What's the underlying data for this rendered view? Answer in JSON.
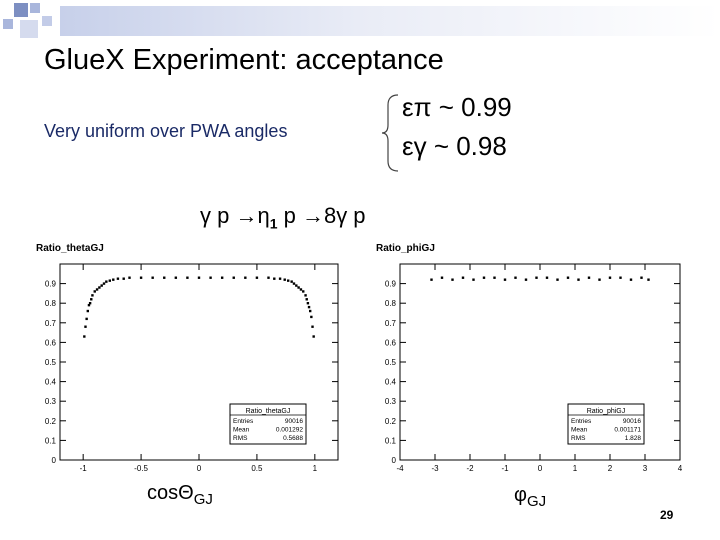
{
  "slide": {
    "title": "GlueX Experiment:  acceptance",
    "subtitle": "Very uniform over PWA angles",
    "eps_pi": "επ ~ 0.99",
    "eps_gamma": "εγ ~ 0.98",
    "reaction": {
      "pre": "γ p →η",
      "sub": "1",
      "post": " p →8γ p"
    },
    "page_number": "29",
    "deco_colors": [
      "#7d8fc2",
      "#a9b6dc",
      "#d5dbee"
    ]
  },
  "chart_data": [
    {
      "type": "scatter",
      "title": "Ratio_thetaGJ",
      "xlabel": "cosΘ",
      "xlabel_sub": "GJ",
      "ylabel": "",
      "xlim": [
        -1.2,
        1.2
      ],
      "ylim": [
        0,
        1.0
      ],
      "x_ticks": [
        "-1",
        "-0.5",
        "0",
        "0.5",
        "1"
      ],
      "y_ticks": [
        "0",
        "0.1",
        "0.2",
        "0.3",
        "0.4",
        "0.5",
        "0.6",
        "0.7",
        "0.8",
        "0.9"
      ],
      "series": [
        {
          "name": "Ratio_thetaGJ",
          "x": [
            -0.99,
            -0.98,
            -0.97,
            -0.96,
            -0.95,
            -0.94,
            -0.93,
            -0.92,
            -0.9,
            -0.88,
            -0.86,
            -0.84,
            -0.82,
            -0.8,
            -0.77,
            -0.74,
            -0.7,
            -0.65,
            -0.6,
            -0.5,
            -0.4,
            -0.3,
            -0.2,
            -0.1,
            0.0,
            0.1,
            0.2,
            0.3,
            0.4,
            0.5,
            0.6,
            0.65,
            0.7,
            0.74,
            0.77,
            0.8,
            0.82,
            0.84,
            0.86,
            0.88,
            0.9,
            0.92,
            0.93,
            0.94,
            0.95,
            0.96,
            0.97,
            0.98,
            0.99
          ],
          "y": [
            0.63,
            0.68,
            0.72,
            0.76,
            0.79,
            0.8,
            0.82,
            0.84,
            0.86,
            0.87,
            0.88,
            0.89,
            0.9,
            0.91,
            0.915,
            0.92,
            0.925,
            0.925,
            0.93,
            0.93,
            0.93,
            0.93,
            0.93,
            0.93,
            0.93,
            0.93,
            0.93,
            0.93,
            0.93,
            0.93,
            0.93,
            0.925,
            0.925,
            0.92,
            0.915,
            0.91,
            0.9,
            0.89,
            0.88,
            0.87,
            0.86,
            0.84,
            0.82,
            0.8,
            0.78,
            0.76,
            0.73,
            0.68,
            0.63
          ]
        }
      ],
      "stats": {
        "name": "Ratio_thetaGJ",
        "rows": [
          {
            "label": "Entries",
            "value": "90016"
          },
          {
            "label": "Mean",
            "value": "0.001292"
          },
          {
            "label": "RMS",
            "value": "0.5688"
          }
        ]
      }
    },
    {
      "type": "scatter",
      "title": "Ratio_phiGJ",
      "xlabel": "φ",
      "xlabel_sub": "GJ",
      "ylabel": "",
      "xlim": [
        -4,
        4
      ],
      "ylim": [
        0,
        1.0
      ],
      "x_ticks": [
        "-4",
        "-3",
        "-2",
        "-1",
        "0",
        "1",
        "2",
        "3",
        "4"
      ],
      "y_ticks": [
        "0",
        "0.1",
        "0.2",
        "0.3",
        "0.4",
        "0.5",
        "0.6",
        "0.7",
        "0.8",
        "0.9"
      ],
      "series": [
        {
          "name": "Ratio_phiGJ",
          "x": [
            -3.1,
            -2.8,
            -2.5,
            -2.2,
            -1.9,
            -1.6,
            -1.3,
            -1.0,
            -0.7,
            -0.4,
            -0.1,
            0.2,
            0.5,
            0.8,
            1.1,
            1.4,
            1.7,
            2.0,
            2.3,
            2.6,
            2.9,
            3.1
          ],
          "y": [
            0.92,
            0.93,
            0.92,
            0.93,
            0.92,
            0.93,
            0.93,
            0.92,
            0.93,
            0.92,
            0.93,
            0.93,
            0.92,
            0.93,
            0.92,
            0.93,
            0.92,
            0.93,
            0.93,
            0.92,
            0.93,
            0.92
          ]
        }
      ],
      "stats": {
        "name": "Ratio_phiGJ",
        "rows": [
          {
            "label": "Entries",
            "value": "90016"
          },
          {
            "label": "Mean",
            "value": "0.001171"
          },
          {
            "label": "RMS",
            "value": "1.828"
          }
        ]
      }
    }
  ]
}
